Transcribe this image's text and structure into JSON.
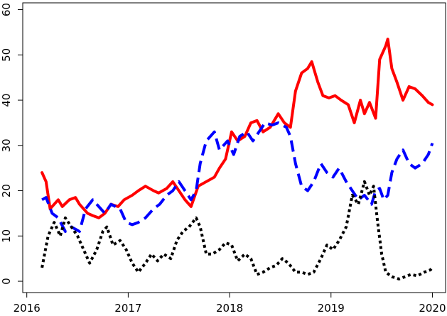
{
  "chart_data": {
    "type": "line",
    "title": "",
    "xlabel": "",
    "ylabel": "",
    "xlim": [
      2015.96,
      2020.13
    ],
    "ylim": [
      -2.5,
      61.5
    ],
    "x_ticks": [
      2016,
      2017,
      2018,
      2019,
      2020
    ],
    "x_tick_labels": [
      "2016",
      "2017",
      "2018",
      "2019",
      "2020"
    ],
    "y_ticks": [
      0,
      10,
      20,
      30,
      40,
      50,
      60
    ],
    "y_tick_labels": [
      "0",
      "10",
      "20",
      "30",
      "40",
      "50",
      "60"
    ],
    "grid": false,
    "legend": "none",
    "series": [
      {
        "style": "solid",
        "color": "#ff0000",
        "points": [
          [
            2016.15,
            24
          ],
          [
            2016.19,
            22
          ],
          [
            2016.23,
            16
          ],
          [
            2016.31,
            18
          ],
          [
            2016.35,
            16.5
          ],
          [
            2016.42,
            18
          ],
          [
            2016.48,
            18.5
          ],
          [
            2016.52,
            17
          ],
          [
            2016.56,
            16
          ],
          [
            2016.6,
            15
          ],
          [
            2016.65,
            14.5
          ],
          [
            2016.71,
            14
          ],
          [
            2016.77,
            15
          ],
          [
            2016.83,
            17
          ],
          [
            2016.9,
            16.5
          ],
          [
            2016.96,
            18
          ],
          [
            2017.04,
            19
          ],
          [
            2017.1,
            20
          ],
          [
            2017.17,
            21
          ],
          [
            2017.25,
            20
          ],
          [
            2017.3,
            19.5
          ],
          [
            2017.38,
            20.5
          ],
          [
            2017.44,
            22
          ],
          [
            2017.5,
            20
          ],
          [
            2017.56,
            18
          ],
          [
            2017.62,
            16.5
          ],
          [
            2017.69,
            21
          ],
          [
            2017.77,
            22
          ],
          [
            2017.85,
            23
          ],
          [
            2017.9,
            25
          ],
          [
            2017.96,
            27
          ],
          [
            2018.02,
            33
          ],
          [
            2018.08,
            31
          ],
          [
            2018.15,
            32
          ],
          [
            2018.21,
            35
          ],
          [
            2018.27,
            35.5
          ],
          [
            2018.33,
            33
          ],
          [
            2018.4,
            34
          ],
          [
            2018.48,
            37
          ],
          [
            2018.54,
            35
          ],
          [
            2018.6,
            34
          ],
          [
            2018.65,
            42
          ],
          [
            2018.71,
            46
          ],
          [
            2018.77,
            47
          ],
          [
            2018.81,
            48.5
          ],
          [
            2018.87,
            44
          ],
          [
            2018.92,
            41
          ],
          [
            2018.98,
            40.5
          ],
          [
            2019.04,
            41
          ],
          [
            2019.1,
            40
          ],
          [
            2019.17,
            39
          ],
          [
            2019.23,
            35
          ],
          [
            2019.29,
            40
          ],
          [
            2019.33,
            37
          ],
          [
            2019.38,
            39.5
          ],
          [
            2019.44,
            36
          ],
          [
            2019.48,
            49
          ],
          [
            2019.54,
            52
          ],
          [
            2019.56,
            53.5
          ],
          [
            2019.6,
            47
          ],
          [
            2019.65,
            44
          ],
          [
            2019.71,
            40
          ],
          [
            2019.77,
            43
          ],
          [
            2019.83,
            42.5
          ],
          [
            2019.9,
            41
          ],
          [
            2019.96,
            39.5
          ],
          [
            2020.0,
            39
          ]
        ]
      },
      {
        "style": "dashed",
        "color": "#0000ff",
        "points": [
          [
            2016.15,
            18
          ],
          [
            2016.19,
            18.5
          ],
          [
            2016.25,
            15
          ],
          [
            2016.31,
            14
          ],
          [
            2016.38,
            11
          ],
          [
            2016.44,
            12
          ],
          [
            2016.48,
            11.5
          ],
          [
            2016.52,
            11
          ],
          [
            2016.58,
            16
          ],
          [
            2016.65,
            18
          ],
          [
            2016.71,
            16.5
          ],
          [
            2016.77,
            15
          ],
          [
            2016.83,
            17
          ],
          [
            2016.92,
            16
          ],
          [
            2016.98,
            13
          ],
          [
            2017.04,
            12.5
          ],
          [
            2017.1,
            13
          ],
          [
            2017.17,
            14
          ],
          [
            2017.25,
            16
          ],
          [
            2017.31,
            17
          ],
          [
            2017.38,
            19
          ],
          [
            2017.44,
            20
          ],
          [
            2017.5,
            22
          ],
          [
            2017.56,
            20
          ],
          [
            2017.62,
            18
          ],
          [
            2017.67,
            20
          ],
          [
            2017.71,
            26
          ],
          [
            2017.77,
            31
          ],
          [
            2017.81,
            32
          ],
          [
            2017.85,
            33
          ],
          [
            2017.9,
            29
          ],
          [
            2017.94,
            30
          ],
          [
            2017.98,
            31
          ],
          [
            2018.04,
            28
          ],
          [
            2018.1,
            32
          ],
          [
            2018.17,
            33
          ],
          [
            2018.23,
            31
          ],
          [
            2018.29,
            33
          ],
          [
            2018.35,
            35
          ],
          [
            2018.42,
            34.5
          ],
          [
            2018.48,
            35
          ],
          [
            2018.56,
            34
          ],
          [
            2018.6,
            32
          ],
          [
            2018.65,
            26
          ],
          [
            2018.71,
            21
          ],
          [
            2018.77,
            20
          ],
          [
            2018.83,
            22
          ],
          [
            2018.9,
            26
          ],
          [
            2018.96,
            24
          ],
          [
            2019.02,
            23
          ],
          [
            2019.08,
            25
          ],
          [
            2019.15,
            22
          ],
          [
            2019.21,
            20
          ],
          [
            2019.27,
            18
          ],
          [
            2019.33,
            19
          ],
          [
            2019.4,
            17
          ],
          [
            2019.44,
            20
          ],
          [
            2019.48,
            20.5
          ],
          [
            2019.52,
            18
          ],
          [
            2019.56,
            19
          ],
          [
            2019.6,
            24
          ],
          [
            2019.65,
            27
          ],
          [
            2019.71,
            29
          ],
          [
            2019.77,
            26
          ],
          [
            2019.83,
            25
          ],
          [
            2019.9,
            26
          ],
          [
            2019.96,
            28
          ],
          [
            2020.0,
            30.5
          ]
        ]
      },
      {
        "style": "dotted",
        "color": "#000000",
        "points": [
          [
            2016.15,
            3
          ],
          [
            2016.21,
            10
          ],
          [
            2016.27,
            13
          ],
          [
            2016.33,
            10
          ],
          [
            2016.38,
            14
          ],
          [
            2016.44,
            12
          ],
          [
            2016.5,
            10
          ],
          [
            2016.56,
            7
          ],
          [
            2016.62,
            4
          ],
          [
            2016.69,
            7
          ],
          [
            2016.75,
            11
          ],
          [
            2016.79,
            12
          ],
          [
            2016.85,
            8
          ],
          [
            2016.92,
            9
          ],
          [
            2016.98,
            7
          ],
          [
            2017.04,
            4
          ],
          [
            2017.1,
            2
          ],
          [
            2017.17,
            4
          ],
          [
            2017.23,
            6
          ],
          [
            2017.29,
            4.5
          ],
          [
            2017.35,
            6
          ],
          [
            2017.42,
            5
          ],
          [
            2017.48,
            9
          ],
          [
            2017.54,
            11
          ],
          [
            2017.6,
            12
          ],
          [
            2017.67,
            14
          ],
          [
            2017.71,
            12
          ],
          [
            2017.77,
            6
          ],
          [
            2017.83,
            6
          ],
          [
            2017.9,
            7
          ],
          [
            2017.96,
            8.5
          ],
          [
            2018.02,
            8
          ],
          [
            2018.08,
            4.5
          ],
          [
            2018.15,
            6
          ],
          [
            2018.21,
            5
          ],
          [
            2018.27,
            1.5
          ],
          [
            2018.33,
            2
          ],
          [
            2018.4,
            3
          ],
          [
            2018.46,
            3.5
          ],
          [
            2018.52,
            5
          ],
          [
            2018.58,
            4
          ],
          [
            2018.65,
            2
          ],
          [
            2018.71,
            2
          ],
          [
            2018.77,
            1.5
          ],
          [
            2018.83,
            2
          ],
          [
            2018.9,
            5
          ],
          [
            2018.96,
            8
          ],
          [
            2019.02,
            7
          ],
          [
            2019.08,
            9
          ],
          [
            2019.15,
            12
          ],
          [
            2019.21,
            19
          ],
          [
            2019.27,
            17
          ],
          [
            2019.33,
            22
          ],
          [
            2019.38,
            19
          ],
          [
            2019.42,
            21
          ],
          [
            2019.46,
            13
          ],
          [
            2019.5,
            6
          ],
          [
            2019.54,
            2
          ],
          [
            2019.6,
            1
          ],
          [
            2019.67,
            0.5
          ],
          [
            2019.73,
            1
          ],
          [
            2019.79,
            1.5
          ],
          [
            2019.85,
            1.2
          ],
          [
            2019.92,
            2
          ],
          [
            2019.98,
            2.5
          ],
          [
            2020.0,
            3
          ]
        ]
      }
    ]
  }
}
